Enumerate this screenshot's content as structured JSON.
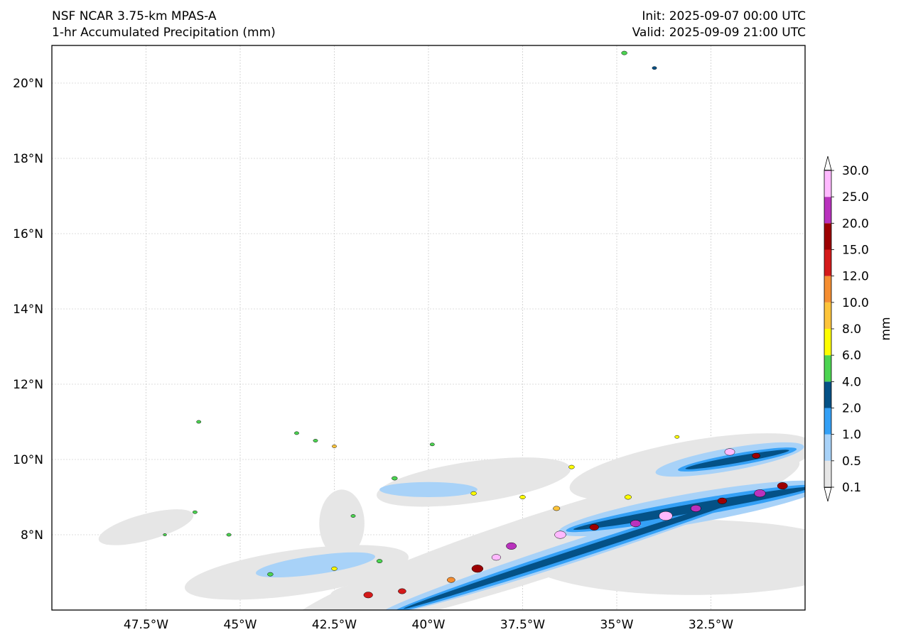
{
  "header": {
    "title_left_1": "NSF NCAR 3.75-km MPAS-A",
    "title_left_2": "1-hr Accumulated Precipitation (mm)",
    "title_right_1": "Init: 2025-09-07 00:00 UTC",
    "title_right_2": "Valid: 2025-09-09 21:00 UTC"
  },
  "map": {
    "lon_range": [
      -50.0,
      -30.0
    ],
    "lat_range": [
      6.0,
      21.0
    ],
    "lon_ticks": [
      {
        "value": -47.5,
        "label": "47.5°W"
      },
      {
        "value": -45.0,
        "label": "45°W"
      },
      {
        "value": -42.5,
        "label": "42.5°W"
      },
      {
        "value": -40.0,
        "label": "40°W"
      },
      {
        "value": -37.5,
        "label": "37.5°W"
      },
      {
        "value": -35.0,
        "label": "35°W"
      },
      {
        "value": -32.5,
        "label": "32.5°W"
      }
    ],
    "lat_ticks": [
      {
        "value": 8,
        "label": "8°N"
      },
      {
        "value": 10,
        "label": "10°N"
      },
      {
        "value": 12,
        "label": "12°N"
      },
      {
        "value": 14,
        "label": "14°N"
      },
      {
        "value": 16,
        "label": "16°N"
      },
      {
        "value": 18,
        "label": "18°N"
      },
      {
        "value": 20,
        "label": "20°N"
      }
    ],
    "grid": true,
    "precip_areas": [
      {
        "lon": -37.0,
        "lat": 7.7,
        "rlon": 7.2,
        "rlat": 0.85,
        "rot": -18,
        "level": 0.1
      },
      {
        "lon": -33.0,
        "lat": 7.4,
        "rlon": 4.5,
        "rlat": 1.0,
        "rot": 0,
        "level": 0.1
      },
      {
        "lon": -43.5,
        "lat": 7.0,
        "rlon": 3.0,
        "rlat": 0.6,
        "rot": -8,
        "level": 0.1
      },
      {
        "lon": -47.5,
        "lat": 8.2,
        "rlon": 1.3,
        "rlat": 0.35,
        "rot": -15,
        "level": 0.1
      },
      {
        "lon": -41.0,
        "lat": 6.4,
        "rlon": 1.6,
        "rlat": 0.35,
        "rot": 0,
        "level": 0.1
      },
      {
        "lon": -38.8,
        "lat": 9.4,
        "rlon": 2.6,
        "rlat": 0.55,
        "rot": -8,
        "level": 0.1
      },
      {
        "lon": -33.0,
        "lat": 9.8,
        "rlon": 3.3,
        "rlat": 0.7,
        "rot": -10,
        "level": 0.1
      },
      {
        "lon": -42.3,
        "lat": 8.3,
        "rlon": 0.6,
        "rlat": 0.9,
        "rot": 0,
        "level": 0.1
      },
      {
        "lon": -36.0,
        "lat": 7.6,
        "rlon": 5.6,
        "rlat": 0.28,
        "rot": -18,
        "level": 0.5
      },
      {
        "lon": -33.0,
        "lat": 8.7,
        "rlon": 3.6,
        "rlat": 0.4,
        "rot": -10,
        "level": 0.5
      },
      {
        "lon": -32.0,
        "lat": 10.0,
        "rlon": 2.0,
        "rlat": 0.3,
        "rot": -10,
        "level": 0.5
      },
      {
        "lon": -43.0,
        "lat": 7.2,
        "rlon": 1.6,
        "rlat": 0.25,
        "rot": -8,
        "level": 0.5
      },
      {
        "lon": -40.0,
        "lat": 9.2,
        "rlon": 1.3,
        "rlat": 0.2,
        "rot": 0,
        "level": 0.5
      },
      {
        "lon": -36.0,
        "lat": 7.55,
        "rlon": 5.2,
        "rlat": 0.17,
        "rot": -18,
        "level": 1.0
      },
      {
        "lon": -33.0,
        "lat": 8.7,
        "rlon": 3.4,
        "rlat": 0.22,
        "rot": -10,
        "level": 1.0
      },
      {
        "lon": -31.8,
        "lat": 10.0,
        "rlon": 1.6,
        "rlat": 0.16,
        "rot": -10,
        "level": 1.0
      },
      {
        "lon": -36.0,
        "lat": 7.55,
        "rlon": 4.9,
        "rlat": 0.09,
        "rot": -18,
        "level": 2.0
      },
      {
        "lon": -33.0,
        "lat": 8.7,
        "rlon": 3.2,
        "rlat": 0.12,
        "rot": -10,
        "level": 2.0
      },
      {
        "lon": -31.8,
        "lat": 10.0,
        "rlon": 1.4,
        "rlat": 0.09,
        "rot": -10,
        "level": 2.0
      }
    ],
    "precip_cells": [
      {
        "lon": -41.6,
        "lat": 6.4,
        "r": 0.08,
        "level": 12.0
      },
      {
        "lon": -40.7,
        "lat": 6.5,
        "r": 0.07,
        "level": 12.0
      },
      {
        "lon": -39.4,
        "lat": 6.8,
        "r": 0.07,
        "level": 10.0
      },
      {
        "lon": -38.7,
        "lat": 7.1,
        "r": 0.1,
        "level": 15.0
      },
      {
        "lon": -38.2,
        "lat": 7.4,
        "r": 0.08,
        "level": 25.0
      },
      {
        "lon": -37.8,
        "lat": 7.7,
        "r": 0.09,
        "level": 20.0
      },
      {
        "lon": -36.5,
        "lat": 8.0,
        "r": 0.1,
        "level": 25.0
      },
      {
        "lon": -35.6,
        "lat": 8.2,
        "r": 0.08,
        "level": 15.0
      },
      {
        "lon": -34.5,
        "lat": 8.3,
        "r": 0.09,
        "level": 20.0
      },
      {
        "lon": -33.7,
        "lat": 8.5,
        "r": 0.12,
        "level": 25.0
      },
      {
        "lon": -32.9,
        "lat": 8.7,
        "r": 0.09,
        "level": 20.0
      },
      {
        "lon": -32.2,
        "lat": 8.9,
        "r": 0.08,
        "level": 15.0
      },
      {
        "lon": -31.2,
        "lat": 9.1,
        "r": 0.1,
        "level": 20.0
      },
      {
        "lon": -30.6,
        "lat": 9.3,
        "r": 0.09,
        "level": 15.0
      },
      {
        "lon": -32.0,
        "lat": 10.2,
        "r": 0.09,
        "level": 25.0
      },
      {
        "lon": -31.3,
        "lat": 10.1,
        "r": 0.07,
        "level": 15.0
      },
      {
        "lon": -34.7,
        "lat": 9.0,
        "r": 0.06,
        "level": 6.0
      },
      {
        "lon": -36.6,
        "lat": 8.7,
        "r": 0.06,
        "level": 8.0
      },
      {
        "lon": -36.2,
        "lat": 9.8,
        "r": 0.05,
        "level": 6.0
      },
      {
        "lon": -38.8,
        "lat": 9.1,
        "r": 0.05,
        "level": 6.0
      },
      {
        "lon": -40.9,
        "lat": 9.5,
        "r": 0.05,
        "level": 4.0
      },
      {
        "lon": -42.5,
        "lat": 7.1,
        "r": 0.05,
        "level": 6.0
      },
      {
        "lon": -44.2,
        "lat": 6.95,
        "r": 0.05,
        "level": 4.0
      },
      {
        "lon": -41.3,
        "lat": 7.3,
        "r": 0.05,
        "level": 4.0
      },
      {
        "lon": -42.0,
        "lat": 8.5,
        "r": 0.04,
        "level": 4.0
      },
      {
        "lon": -46.2,
        "lat": 8.6,
        "r": 0.04,
        "level": 4.0
      },
      {
        "lon": -46.1,
        "lat": 11.0,
        "r": 0.04,
        "level": 4.0
      },
      {
        "lon": -43.5,
        "lat": 10.7,
        "r": 0.04,
        "level": 4.0
      },
      {
        "lon": -43.0,
        "lat": 10.5,
        "r": 0.04,
        "level": 4.0
      },
      {
        "lon": -42.5,
        "lat": 10.35,
        "r": 0.04,
        "level": 8.0
      },
      {
        "lon": -39.9,
        "lat": 10.4,
        "r": 0.04,
        "level": 4.0
      },
      {
        "lon": -34.8,
        "lat": 20.8,
        "r": 0.05,
        "level": 4.0
      },
      {
        "lon": -34.0,
        "lat": 20.4,
        "r": 0.04,
        "level": 2.0
      },
      {
        "lon": -45.3,
        "lat": 8.0,
        "r": 0.04,
        "level": 4.0
      },
      {
        "lon": -47.0,
        "lat": 8.0,
        "r": 0.03,
        "level": 4.0
      },
      {
        "lon": -33.4,
        "lat": 10.6,
        "r": 0.04,
        "level": 6.0
      },
      {
        "lon": -37.5,
        "lat": 9.0,
        "r": 0.05,
        "level": 6.0
      }
    ]
  },
  "colorbar": {
    "label": "mm",
    "boundaries": [
      "0.1",
      "0.5",
      "1.0",
      "2.0",
      "4.0",
      "6.0",
      "8.0",
      "10.0",
      "12.0",
      "15.0",
      "20.0",
      "25.0",
      "30.0"
    ],
    "colors": [
      "#e6e6e6",
      "#a8d2f8",
      "#34a0f6",
      "#045186",
      "#4cd451",
      "#fdfd00",
      "#fdc43b",
      "#f58e31",
      "#d41a1a",
      "#9c0002",
      "#b932bd",
      "#ffb9ff"
    ],
    "under_color": "#ffffff",
    "over_color": "#ffffff"
  }
}
